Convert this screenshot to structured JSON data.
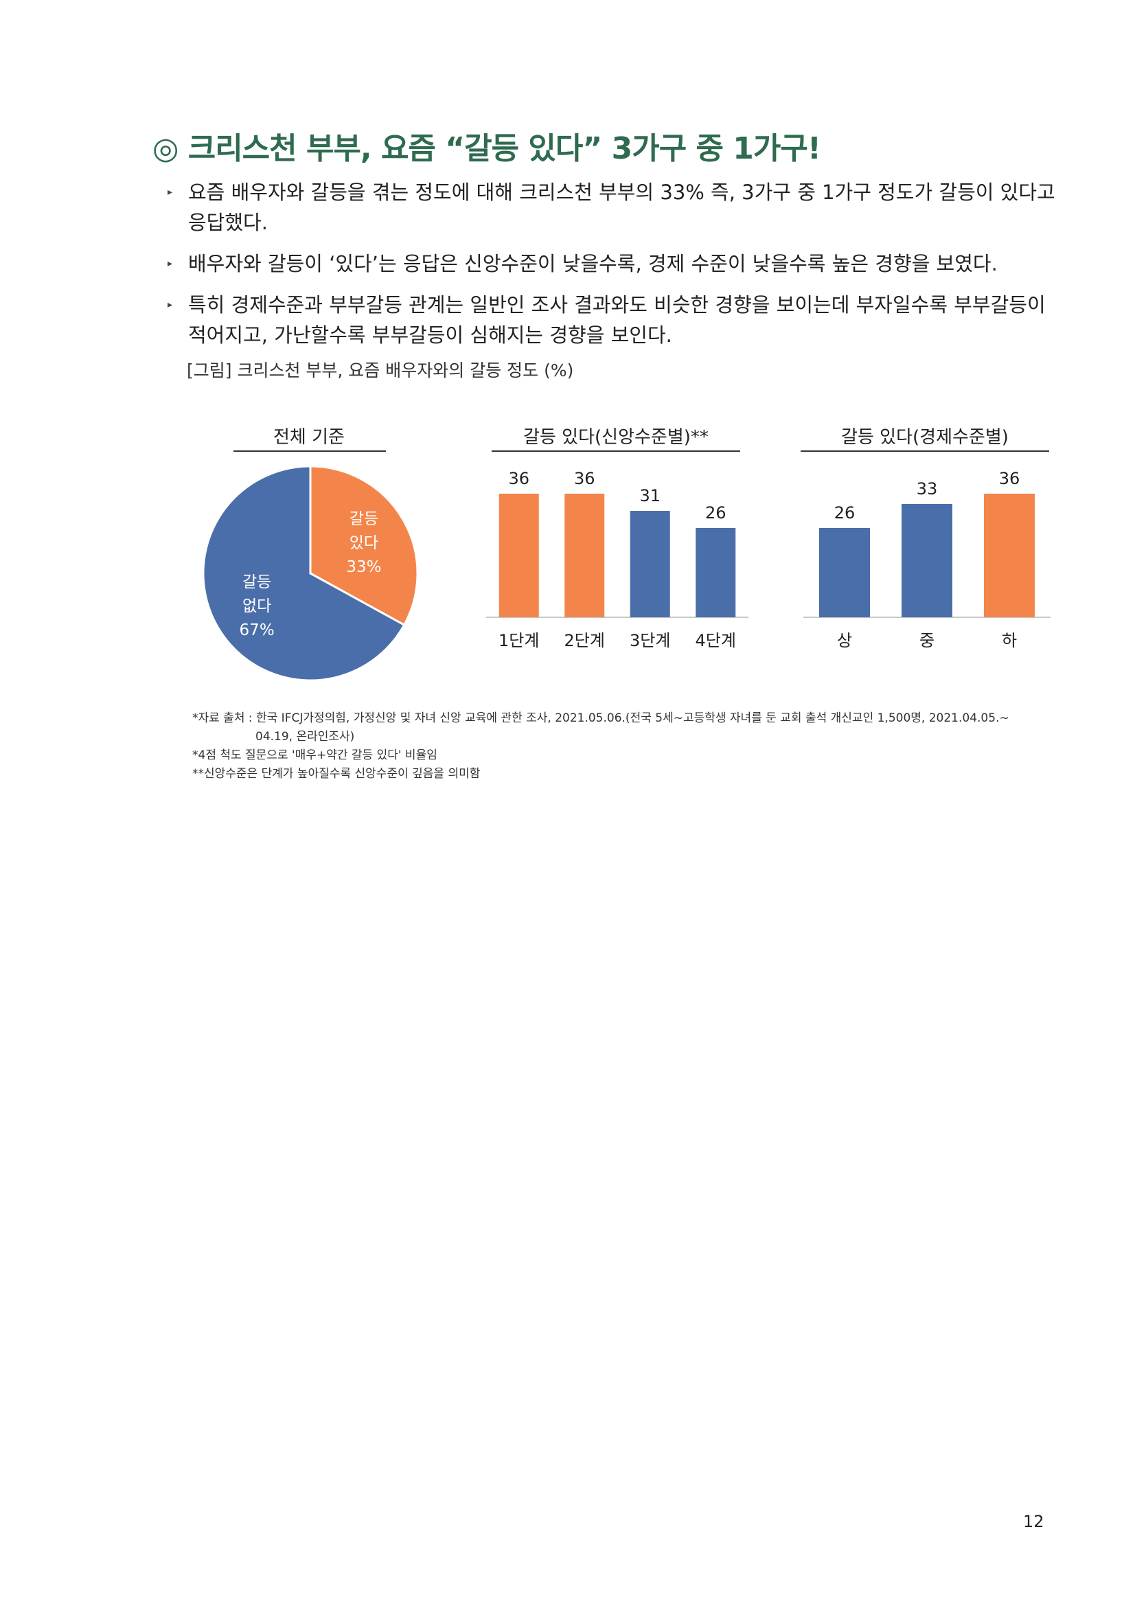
{
  "title": "◎ 크리스천 부부, 요즘 “갈등 있다” 3가구 중 1가구!",
  "bullets": [
    "요즘 배우자와 갈등을 겪는 정도에 대해 크리스천 부부의 33% 즉, 3가구 중 1가구 정도가 갈등이 있다고 응답했다.",
    "배우자와 갈등이 ‘있다’는 응답은 신앙수준이 낮을수록, 경제 수준이 낮을수록 높은 경향을 보였다.",
    "특히 경제수준과 부부갈등 관계는 일반인 조사 결과와도 비슷한 경향을 보이는데 부자일수록 부부갈등이 적어지고, 가난할수록 부부갈등이 심해지는 경향을 보인다."
  ],
  "figure_caption": "[그림] 크리스천 부부, 요즘 배우자와의 갈등 정도 (%)",
  "colors": {
    "orange": "#f4854a",
    "blue": "#4a6ea9",
    "title_green": "#2e6b4f"
  },
  "chart_data": [
    {
      "type": "pie",
      "title": "전체 기준",
      "slices": [
        {
          "label_lines": [
            "갈등",
            "있다",
            "33%"
          ],
          "value": 33,
          "color": "#f4854a"
        },
        {
          "label_lines": [
            "갈등",
            "없다",
            "67%"
          ],
          "value": 67,
          "color": "#4a6ea9"
        }
      ]
    },
    {
      "type": "bar",
      "title": "갈등 있다(신앙수준별)**",
      "categories": [
        "1단계",
        "2단계",
        "3단계",
        "4단계"
      ],
      "values": [
        36,
        36,
        31,
        26
      ],
      "colors": [
        "#f4854a",
        "#f4854a",
        "#4a6ea9",
        "#4a6ea9"
      ],
      "ylim": [
        0,
        40
      ]
    },
    {
      "type": "bar",
      "title": "갈등 있다(경제수준별)",
      "categories": [
        "상",
        "중",
        "하"
      ],
      "values": [
        26,
        33,
        36
      ],
      "colors": [
        "#4a6ea9",
        "#4a6ea9",
        "#f4854a"
      ],
      "ylim": [
        0,
        40
      ]
    }
  ],
  "notes": {
    "source_line1": "*자료 출처 : 한국 IFCJ가정의힘, 가정신앙 및 자녀 신앙 교육에 관한 조사, 2021.05.06.(전국 5세~고등학생 자녀를 둔 교회 출석 개신교인 1,500명, 2021.04.05.~",
    "source_line2": "04.19, 온라인조사)",
    "note2": "*4점 척도 질문으로 '매우+약간 갈등 있다' 비율임",
    "note3": "**신앙수준은 단계가 높아질수록 신앙수준이 깊음을 의미함"
  },
  "page_number": "12"
}
